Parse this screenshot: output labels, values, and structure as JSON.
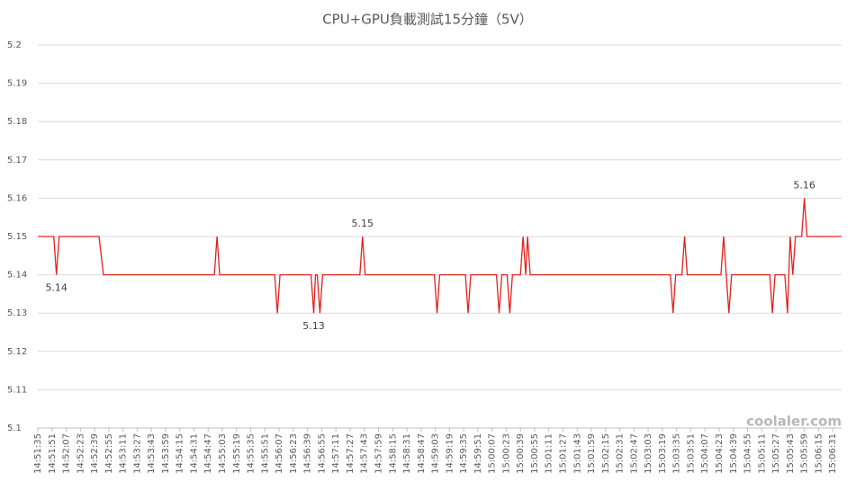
{
  "chart_data": {
    "type": "line",
    "title": "CPU+GPU負載測試15分鐘（5V）",
    "watermark": "coolaler.com",
    "x": [
      "14:51:35",
      "14:51:53",
      "14:51:56",
      "14:51:59",
      "14:52:44",
      "14:52:49",
      "14:54:54",
      "14:54:57",
      "14:55:00",
      "14:56:02",
      "14:56:05",
      "14:56:08",
      "14:56:43",
      "14:56:46",
      "14:56:48",
      "14:56:50",
      "14:56:53",
      "14:56:56",
      "14:57:38",
      "14:57:41",
      "14:57:44",
      "14:59:02",
      "14:59:05",
      "14:59:08",
      "14:59:37",
      "14:59:40",
      "14:59:43",
      "15:00:12",
      "15:00:15",
      "15:00:18",
      "15:00:24",
      "15:00:27",
      "15:00:30",
      "15:00:39",
      "15:00:42",
      "15:00:45",
      "15:00:47",
      "15:00:50",
      "15:03:28",
      "15:03:31",
      "15:03:34",
      "15:03:41",
      "15:03:44",
      "15:03:47",
      "15:04:25",
      "15:04:28",
      "15:04:31",
      "15:04:34",
      "15:04:37",
      "15:05:20",
      "15:05:23",
      "15:05:26",
      "15:05:37",
      "15:05:40",
      "15:05:43",
      "15:05:46",
      "15:05:49",
      "15:05:56",
      "15:05:59",
      "15:06:02",
      "15:06:41"
    ],
    "series": [
      {
        "color": "#e3211c",
        "values": [
          5.15,
          5.15,
          5.14,
          5.15,
          5.15,
          5.14,
          5.14,
          5.15,
          5.14,
          5.14,
          5.13,
          5.14,
          5.14,
          5.13,
          5.14,
          5.14,
          5.13,
          5.14,
          5.14,
          5.15,
          5.14,
          5.14,
          5.13,
          5.14,
          5.14,
          5.13,
          5.14,
          5.14,
          5.13,
          5.14,
          5.14,
          5.13,
          5.14,
          5.14,
          5.15,
          5.14,
          5.15,
          5.14,
          5.14,
          5.13,
          5.14,
          5.14,
          5.15,
          5.14,
          5.14,
          5.15,
          5.14,
          5.13,
          5.14,
          5.14,
          5.13,
          5.14,
          5.14,
          5.13,
          5.15,
          5.14,
          5.15,
          5.15,
          5.16,
          5.15,
          5.15
        ]
      }
    ],
    "data_labels": [
      2,
      13,
      19,
      58
    ],
    "xlim": [
      "14:51:35",
      "15:06:41"
    ],
    "xticks": [
      "14:51:35",
      "14:51:51",
      "14:52:07",
      "14:52:23",
      "14:52:39",
      "14:52:55",
      "14:53:11",
      "14:53:27",
      "14:53:43",
      "14:53:59",
      "14:54:15",
      "14:54:31",
      "14:54:47",
      "14:55:03",
      "14:55:19",
      "14:55:35",
      "14:55:51",
      "14:56:07",
      "14:56:23",
      "14:56:39",
      "14:56:55",
      "14:57:11",
      "14:57:27",
      "14:57:43",
      "14:57:59",
      "14:58:15",
      "14:58:31",
      "14:58:47",
      "14:59:03",
      "14:59:19",
      "14:59:35",
      "14:59:51",
      "15:00:07",
      "15:00:23",
      "15:00:39",
      "15:00:55",
      "15:01:11",
      "15:01:27",
      "15:01:43",
      "15:01:59",
      "15:02:15",
      "15:02:31",
      "15:02:47",
      "15:03:03",
      "15:03:19",
      "15:03:35",
      "15:03:51",
      "15:04:07",
      "15:04:23",
      "15:04:39",
      "15:04:55",
      "15:05:11",
      "15:05:27",
      "15:05:43",
      "15:05:59",
      "15:06:15",
      "15:06:31"
    ],
    "ylim": [
      5.1,
      5.2
    ],
    "yticks": [
      5.1,
      5.11,
      5.12,
      5.13,
      5.14,
      5.15,
      5.16,
      5.17,
      5.18,
      5.19,
      5.2
    ],
    "grid": true
  }
}
